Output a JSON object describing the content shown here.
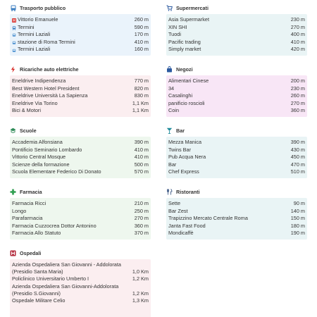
{
  "trasporto": {
    "title": "Trasporto pubblico",
    "items": [
      {
        "name": "Vittorio Emanuele",
        "dist": "260 m",
        "icon": "metro-icon"
      },
      {
        "name": "Termini",
        "dist": "590 m",
        "icon": "train-icon"
      },
      {
        "name": "Termini Laziali",
        "dist": "170 m",
        "icon": "tram-icon"
      },
      {
        "name": "stazione di Roma Termini",
        "dist": "410 m",
        "icon": "tram-icon"
      },
      {
        "name": "Termini Laziali",
        "dist": "160 m",
        "icon": "tram-icon"
      }
    ]
  },
  "supermercati": {
    "title": "Supermercati",
    "items": [
      {
        "name": "Asia Supermarket",
        "dist": "230 m"
      },
      {
        "name": "XIN SHI",
        "dist": "270 m"
      },
      {
        "name": "Tuodi",
        "dist": "400 m"
      },
      {
        "name": "Pacific trading",
        "dist": "410 m"
      },
      {
        "name": "Simply market",
        "dist": "420 m"
      }
    ]
  },
  "ricariche": {
    "title": "Ricariche auto elettriche",
    "items": [
      {
        "name": "Eneldrive Indipendenza",
        "dist": "770 m"
      },
      {
        "name": "Best Western Hotel President",
        "dist": "820 m"
      },
      {
        "name": "Eneldrive Università La Sapienza",
        "dist": "830 m"
      },
      {
        "name": "Eneldrive Via Torino",
        "dist": "1,1 Km"
      },
      {
        "name": "Bici & Motori",
        "dist": "1,1 Km"
      }
    ]
  },
  "negozi": {
    "title": "Negozi",
    "items": [
      {
        "name": "Alimentari Cinese",
        "dist": "200 m"
      },
      {
        "name": "34",
        "dist": "230 m"
      },
      {
        "name": "Casalinghi",
        "dist": "260 m"
      },
      {
        "name": "panificio roscioli",
        "dist": "270 m"
      },
      {
        "name": "Coin",
        "dist": "360 m"
      }
    ]
  },
  "scuole": {
    "title": "Scuole",
    "items": [
      {
        "name": "Accademia Alfonsiana",
        "dist": "390 m"
      },
      {
        "name": "Pontificio Seminario Lombardo",
        "dist": "410 m"
      },
      {
        "name": "Vittorio Central Mosque",
        "dist": "410 m"
      },
      {
        "name": "Scienze della formazione",
        "dist": "500 m"
      },
      {
        "name": "Scuola Elementare Federico Di Donato",
        "dist": "570 m"
      }
    ]
  },
  "bar": {
    "title": "Bar",
    "items": [
      {
        "name": "Mezza Manica",
        "dist": "390 m"
      },
      {
        "name": "Twins Bar",
        "dist": "430 m"
      },
      {
        "name": "Pub Acqua Nera",
        "dist": "450 m"
      },
      {
        "name": "Bar",
        "dist": "470 m"
      },
      {
        "name": "Chef Express",
        "dist": "510 m"
      }
    ]
  },
  "farmacia": {
    "title": "Farmacia",
    "items": [
      {
        "name": "Farmacia Ricci",
        "dist": "210 m"
      },
      {
        "name": "Longo",
        "dist": "250 m"
      },
      {
        "name": "Parafarmacia",
        "dist": "270 m"
      },
      {
        "name": "Farmacia Cuzzocrea Dottor Antonino",
        "dist": "360 m"
      },
      {
        "name": "Farmacia Allo Statuto",
        "dist": "370 m"
      }
    ]
  },
  "ristoranti": {
    "title": "Ristoranti",
    "items": [
      {
        "name": "Sette",
        "dist": "90 m"
      },
      {
        "name": "Bar Zest",
        "dist": "140 m"
      },
      {
        "name": "Trapizzino Mercato Centrale Roma",
        "dist": "150 m"
      },
      {
        "name": "Janta Fast Food",
        "dist": "180 m"
      },
      {
        "name": "Mondicaffè",
        "dist": "190 m"
      }
    ]
  },
  "ospedali": {
    "title": "Ospedali",
    "items": [
      {
        "name": "Azienda Ospedaliera San Giovanni - Addolorata (Presidio Santa Maria)",
        "dist": "1,0 Km"
      },
      {
        "name": "Policlinico Universitario Umberto I",
        "dist": "1,2 Km"
      },
      {
        "name": "Azienda Ospedaliera San Giovanni-Addolorata (Presidio S.Giovanni)",
        "dist": "1,2 Km"
      },
      {
        "name": "Ospedale Militare Celio",
        "dist": "1,3 Km"
      }
    ]
  },
  "colors": {
    "transport": "#eaf3fb",
    "charging": "#fbeef0",
    "schools": "#eef7ee",
    "bars": "#e9f4f5",
    "shops": "#f8e6f6"
  }
}
